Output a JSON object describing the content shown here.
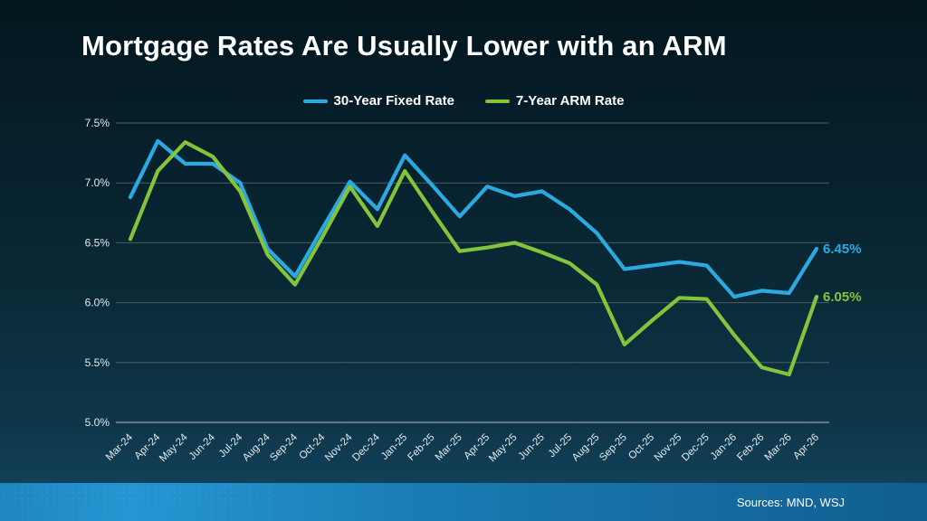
{
  "slide": {
    "title": "Mortgage Rates Are Usually Lower with an ARM",
    "source": "Sources: MND, WSJ"
  },
  "legend": [
    {
      "label": "30-Year Fixed Rate",
      "color": "#29abe2"
    },
    {
      "label": "7-Year ARM Rate",
      "color": "#84c43b"
    }
  ],
  "chart_data": {
    "type": "line",
    "title": "Mortgage Rates Are Usually Lower with an ARM",
    "xlabel": "",
    "ylabel": "",
    "ylim": [
      5.0,
      7.5
    ],
    "grid": true,
    "legend_position": "top",
    "categories": [
      "Mar-24",
      "Apr-24",
      "May-24",
      "Jun-24",
      "Jul-24",
      "Aug-24",
      "Sep-24",
      "Oct-24",
      "Nov-24",
      "Dec-24",
      "Jan-25",
      "Feb-25",
      "Mar-25",
      "Apr-25",
      "May-25",
      "Jun-25",
      "Jul-25",
      "Aug-25",
      "Sep-25",
      "Oct-25",
      "Nov-25",
      "Dec-25",
      "Jan-26",
      "Feb-26",
      "Mar-26",
      "Apr-26"
    ],
    "yticks": [
      {
        "label": "7.5%",
        "value": 7.5
      },
      {
        "label": "7.0%",
        "value": 7.0
      },
      {
        "label": "6.5%",
        "value": 6.5
      },
      {
        "label": "6.0%",
        "value": 6.0
      },
      {
        "label": "5.5%",
        "value": 5.5
      },
      {
        "label": "5.0%",
        "value": 5.0
      }
    ],
    "series": [
      {
        "name": "30-Year Fixed Rate",
        "color": "#29abe2",
        "end_label": "6.45%",
        "values": [
          6.88,
          7.35,
          7.16,
          7.16,
          7.0,
          6.45,
          6.22,
          6.62,
          7.01,
          6.78,
          7.23,
          6.98,
          6.72,
          6.97,
          6.89,
          6.93,
          6.78,
          6.58,
          6.28,
          6.31,
          6.34,
          6.31,
          6.05,
          6.1,
          6.08,
          6.45
        ]
      },
      {
        "name": "7-Year ARM Rate",
        "color": "#84c43b",
        "end_label": "6.05%",
        "values": [
          6.53,
          7.1,
          7.34,
          7.22,
          6.93,
          6.4,
          6.15,
          6.55,
          6.97,
          6.64,
          7.1,
          6.76,
          6.43,
          6.46,
          6.5,
          6.42,
          6.33,
          6.15,
          5.65,
          5.85,
          6.04,
          6.03,
          5.73,
          5.46,
          5.4,
          6.05
        ]
      }
    ]
  }
}
